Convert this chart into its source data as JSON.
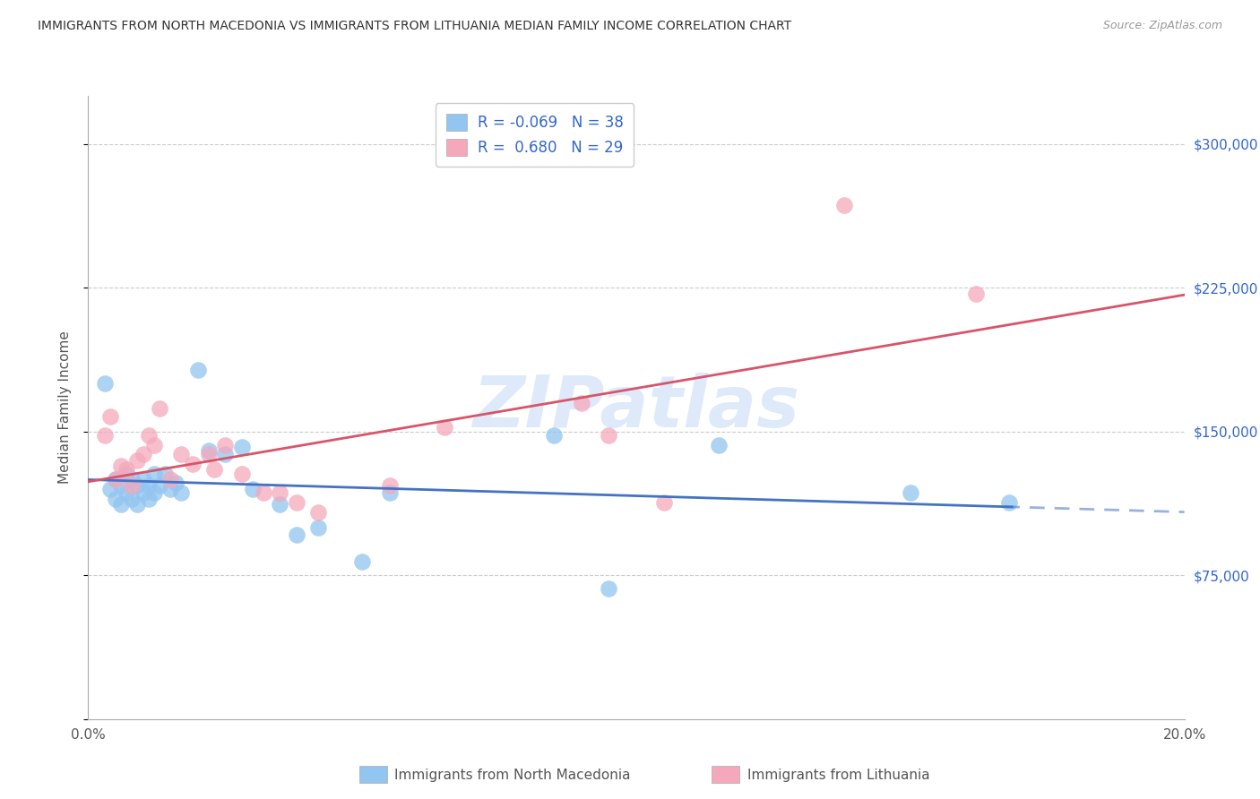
{
  "title": "IMMIGRANTS FROM NORTH MACEDONIA VS IMMIGRANTS FROM LITHUANIA MEDIAN FAMILY INCOME CORRELATION CHART",
  "source": "Source: ZipAtlas.com",
  "ylabel": "Median Family Income",
  "yticks": [
    0,
    75000,
    150000,
    225000,
    300000
  ],
  "ytick_labels": [
    "",
    "$75,000",
    "$150,000",
    "$225,000",
    "$300,000"
  ],
  "xlim": [
    0.0,
    0.2
  ],
  "ylim": [
    0,
    325000
  ],
  "legend_r_blue": "-0.069",
  "legend_n_blue": "38",
  "legend_r_pink": "0.680",
  "legend_n_pink": "29",
  "blue_color": "#92C5F0",
  "pink_color": "#F5A8BC",
  "blue_line_color": "#4472C4",
  "pink_line_color": "#D9546A",
  "watermark": "ZIPatlas",
  "blue_x": [
    0.003,
    0.004,
    0.005,
    0.005,
    0.006,
    0.006,
    0.007,
    0.007,
    0.008,
    0.008,
    0.009,
    0.009,
    0.01,
    0.01,
    0.011,
    0.011,
    0.012,
    0.012,
    0.013,
    0.014,
    0.015,
    0.016,
    0.017,
    0.02,
    0.022,
    0.025,
    0.028,
    0.03,
    0.035,
    0.038,
    0.042,
    0.05,
    0.055,
    0.085,
    0.095,
    0.115,
    0.15,
    0.168
  ],
  "blue_y": [
    175000,
    120000,
    125000,
    115000,
    122000,
    112000,
    128000,
    118000,
    125000,
    115000,
    122000,
    112000,
    125000,
    118000,
    122000,
    115000,
    128000,
    118000,
    122000,
    128000,
    120000,
    123000,
    118000,
    182000,
    140000,
    138000,
    142000,
    120000,
    112000,
    96000,
    100000,
    82000,
    118000,
    148000,
    68000,
    143000,
    118000,
    113000
  ],
  "pink_x": [
    0.003,
    0.004,
    0.005,
    0.006,
    0.007,
    0.008,
    0.009,
    0.01,
    0.011,
    0.012,
    0.013,
    0.015,
    0.017,
    0.019,
    0.022,
    0.023,
    0.025,
    0.028,
    0.032,
    0.035,
    0.038,
    0.042,
    0.055,
    0.065,
    0.09,
    0.095,
    0.105,
    0.138,
    0.162
  ],
  "pink_y": [
    148000,
    158000,
    125000,
    132000,
    130000,
    122000,
    135000,
    138000,
    148000,
    143000,
    162000,
    125000,
    138000,
    133000,
    138000,
    130000,
    143000,
    128000,
    118000,
    118000,
    113000,
    108000,
    122000,
    152000,
    165000,
    148000,
    113000,
    268000,
    222000
  ]
}
